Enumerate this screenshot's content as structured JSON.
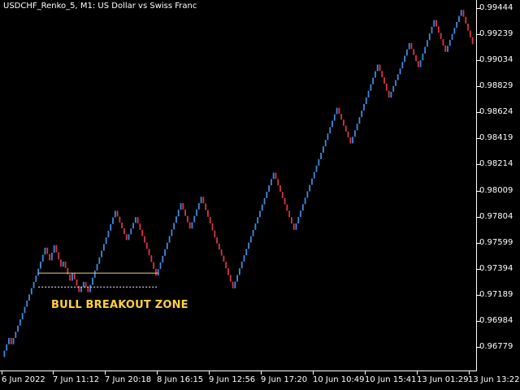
{
  "chart": {
    "title": "USDCHF_Renko_5, M1:  US Dollar vs Swiss Franc",
    "annotation": "BULL BREAKOUT ZONE",
    "colors": {
      "background": "#000000",
      "bull_bar": "#3d8bdf",
      "bear_bar": "#d8354a",
      "zone_line": "#e8d27a",
      "annotation": "#ffd23a",
      "axis": "#ffffff"
    },
    "y_labels": [
      "0.99444",
      "0.99239",
      "0.99034",
      "0.98829",
      "0.98624",
      "0.98419",
      "0.98214",
      "0.98009",
      "0.97804",
      "0.97599",
      "0.97394",
      "0.97189",
      "0.96984",
      "0.96779"
    ],
    "x_labels": [
      "6 Jun 2022",
      "7 Jun 11:12",
      "7 Jun 20:18",
      "8 Jun 16:15",
      "9 Jun 12:56",
      "9 Jun 17:20",
      "10 Jun 10:49",
      "10 Jun 15:41",
      "13 Jun 01:29",
      "13 Jun 13:22"
    ]
  },
  "chart_data": {
    "type": "renko",
    "symbol": "USDCHF",
    "box_size_pips": 5,
    "ylim": [
      0.9668,
      0.9949
    ],
    "path": [
      0.967,
      0.9685,
      0.968,
      0.9734,
      0.9756,
      0.9746,
      0.9758,
      0.9741,
      0.9745,
      0.973,
      0.9736,
      0.9721,
      0.9729,
      0.9721,
      0.9738,
      0.9785,
      0.9762,
      0.978,
      0.975,
      0.9734,
      0.9791,
      0.9771,
      0.9796,
      0.9775,
      0.9764,
      0.9745,
      0.9724,
      0.9745,
      0.9815,
      0.977,
      0.9866,
      0.9838,
      0.99,
      0.9885,
      0.9874,
      0.9897,
      0.9917,
      0.9898,
      0.9914,
      0.9935,
      0.991,
      0.9943,
      0.9916
    ],
    "zone": {
      "upper": 0.9736,
      "lower": 0.9725,
      "from_index": 3,
      "to_index": 19
    }
  }
}
